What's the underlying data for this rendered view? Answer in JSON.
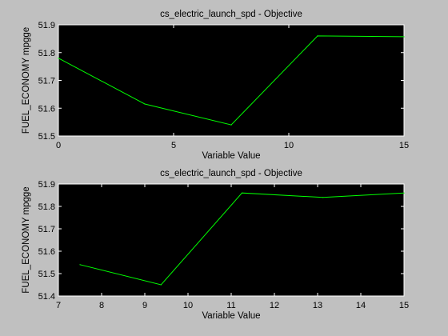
{
  "chart_data": [
    {
      "type": "line",
      "title": "cs_electric_launch_spd - Objective",
      "xlabel": "Variable Value",
      "ylabel": "FUEL_ECONOMY mpgge",
      "xlim": [
        0,
        15
      ],
      "ylim": [
        51.5,
        51.9
      ],
      "xticks": [
        "0",
        "5",
        "10",
        "15"
      ],
      "yticks": [
        "51.5",
        "51.6",
        "51.7",
        "51.8",
        "51.9"
      ],
      "grid": false,
      "series": [
        {
          "x": [
            0,
            3.75,
            7.5,
            11.25,
            15
          ],
          "y": [
            51.78,
            51.615,
            51.54,
            51.86,
            51.857
          ],
          "color": "#00ff00"
        }
      ]
    },
    {
      "type": "line",
      "title": "cs_electric_launch_spd - Objective",
      "xlabel": "Variable Value",
      "ylabel": "FUEL_ECONOMY mpgge",
      "xlim": [
        7,
        15
      ],
      "ylim": [
        51.4,
        51.9
      ],
      "xticks": [
        "7",
        "8",
        "9",
        "10",
        "11",
        "12",
        "13",
        "14",
        "15"
      ],
      "yticks": [
        "51.4",
        "51.5",
        "51.6",
        "51.7",
        "51.8",
        "51.9"
      ],
      "grid": false,
      "series": [
        {
          "x": [
            7.5,
            9.375,
            11.25,
            13.125,
            15
          ],
          "y": [
            51.54,
            51.45,
            51.86,
            51.84,
            51.86
          ],
          "color": "#00ff00"
        }
      ]
    }
  ]
}
